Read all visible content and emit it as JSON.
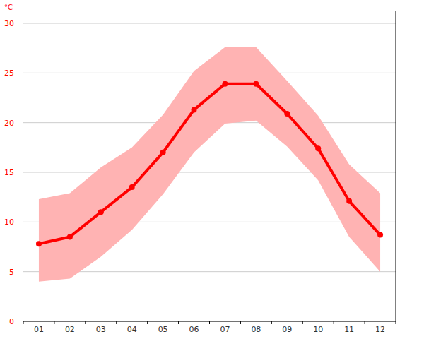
{
  "chart_data": {
    "type": "line",
    "y_label": "°C",
    "categories": [
      "01",
      "02",
      "03",
      "04",
      "05",
      "06",
      "07",
      "08",
      "09",
      "10",
      "11",
      "12"
    ],
    "series": [
      {
        "type": "line",
        "color": "#ff0000",
        "marker": "circle",
        "values": [
          7.8,
          8.5,
          11.0,
          13.5,
          17.0,
          21.3,
          23.9,
          23.9,
          20.9,
          17.4,
          12.1,
          8.7
        ]
      },
      {
        "type": "range",
        "color": "#ffb3b3",
        "low": [
          4.0,
          4.3,
          6.5,
          9.2,
          12.8,
          17.0,
          19.9,
          20.2,
          17.6,
          14.2,
          8.5,
          5.0
        ],
        "high": [
          12.3,
          12.9,
          15.5,
          17.5,
          20.8,
          25.2,
          27.6,
          27.6,
          24.2,
          20.7,
          15.8,
          12.9
        ]
      }
    ],
    "ylim": [
      0,
      30
    ],
    "yticks": [
      0,
      5,
      10,
      15,
      20,
      25,
      30
    ],
    "grid": true
  }
}
